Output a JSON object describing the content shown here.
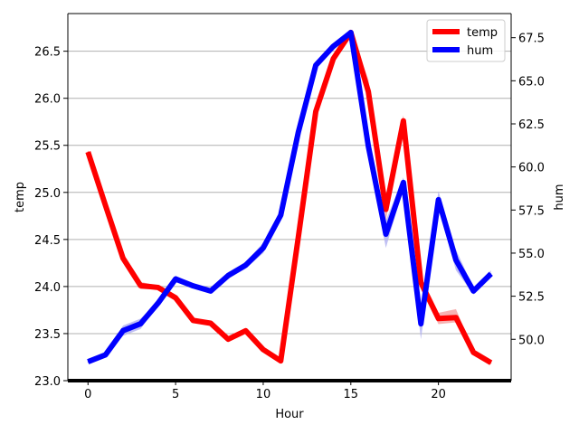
{
  "chart_data": {
    "type": "line",
    "xlabel": "Hour",
    "ylabel_left": "temp",
    "ylabel_right": "hum",
    "xlim": [
      -1.15,
      24.15
    ],
    "ylim_left": [
      23.0,
      26.9
    ],
    "ylim_right": [
      47.6,
      68.9
    ],
    "x_ticks": [
      0,
      5,
      10,
      15,
      20
    ],
    "y_ticks_left": [
      23.0,
      23.5,
      24.0,
      24.5,
      25.0,
      25.5,
      26.0,
      26.5
    ],
    "y_ticks_right": [
      50.0,
      52.5,
      55.0,
      57.5,
      60.0,
      62.5,
      65.0,
      67.5
    ],
    "y_tick_labels_left": [
      "23.0",
      "23.5",
      "24.0",
      "24.5",
      "25.0",
      "25.5",
      "26.0",
      "26.5"
    ],
    "y_tick_labels_right": [
      "50.0",
      "52.5",
      "55.0",
      "57.5",
      "60.0",
      "62.5",
      "65.0",
      "67.5"
    ],
    "x_tick_labels": [
      "0",
      "5",
      "10",
      "15",
      "20"
    ],
    "grid": "horizontal (left axis)",
    "legend_position": "top-right",
    "x": [
      0,
      1,
      2,
      3,
      4,
      5,
      6,
      7,
      8,
      9,
      10,
      11,
      12,
      13,
      14,
      15,
      16,
      17,
      18,
      19,
      20,
      21,
      22,
      23
    ],
    "series": [
      {
        "name": "temp",
        "axis": "left",
        "color": "#ff0000",
        "band_color": "#f5a0a0",
        "values": [
          25.43,
          24.86,
          24.3,
          24.01,
          23.99,
          23.88,
          23.64,
          23.61,
          23.44,
          23.53,
          23.33,
          23.21,
          24.52,
          25.86,
          26.42,
          26.7,
          26.07,
          24.82,
          25.76,
          24.04,
          23.66,
          23.67,
          23.3,
          23.19
        ],
        "band_low": [
          25.41,
          24.84,
          24.28,
          23.97,
          23.97,
          23.86,
          23.62,
          23.59,
          23.42,
          23.51,
          23.31,
          23.19,
          24.5,
          25.84,
          26.4,
          26.68,
          26.0,
          24.7,
          25.7,
          23.98,
          23.6,
          23.62,
          23.28,
          23.17
        ],
        "band_high": [
          25.45,
          24.88,
          24.32,
          24.05,
          24.01,
          23.9,
          23.66,
          23.63,
          23.46,
          23.55,
          23.35,
          23.23,
          24.54,
          25.88,
          26.44,
          26.72,
          26.2,
          24.92,
          25.82,
          24.1,
          23.72,
          23.76,
          23.32,
          23.21
        ]
      },
      {
        "name": "hum",
        "axis": "right",
        "color": "#0000ff",
        "band_color": "#b0b0f0",
        "values": [
          48.7,
          49.1,
          50.5,
          50.9,
          52.1,
          53.5,
          53.1,
          52.8,
          53.7,
          54.3,
          55.3,
          57.2,
          62.0,
          65.9,
          67.0,
          67.8,
          61.2,
          56.1,
          59.1,
          50.9,
          58.1,
          54.6,
          52.8,
          53.8
        ],
        "band_low": [
          48.6,
          49.0,
          50.2,
          50.6,
          52.0,
          53.3,
          53.0,
          52.7,
          53.5,
          54.1,
          55.0,
          57.0,
          61.8,
          65.7,
          66.9,
          67.7,
          60.5,
          55.3,
          58.8,
          50.0,
          57.6,
          54.0,
          52.6,
          53.6
        ],
        "band_high": [
          48.8,
          49.2,
          50.8,
          51.2,
          52.2,
          53.7,
          53.2,
          52.9,
          53.9,
          54.5,
          55.6,
          57.4,
          62.2,
          66.1,
          67.1,
          67.9,
          61.9,
          56.9,
          59.4,
          51.8,
          58.6,
          55.2,
          53.0,
          54.0
        ]
      }
    ]
  }
}
